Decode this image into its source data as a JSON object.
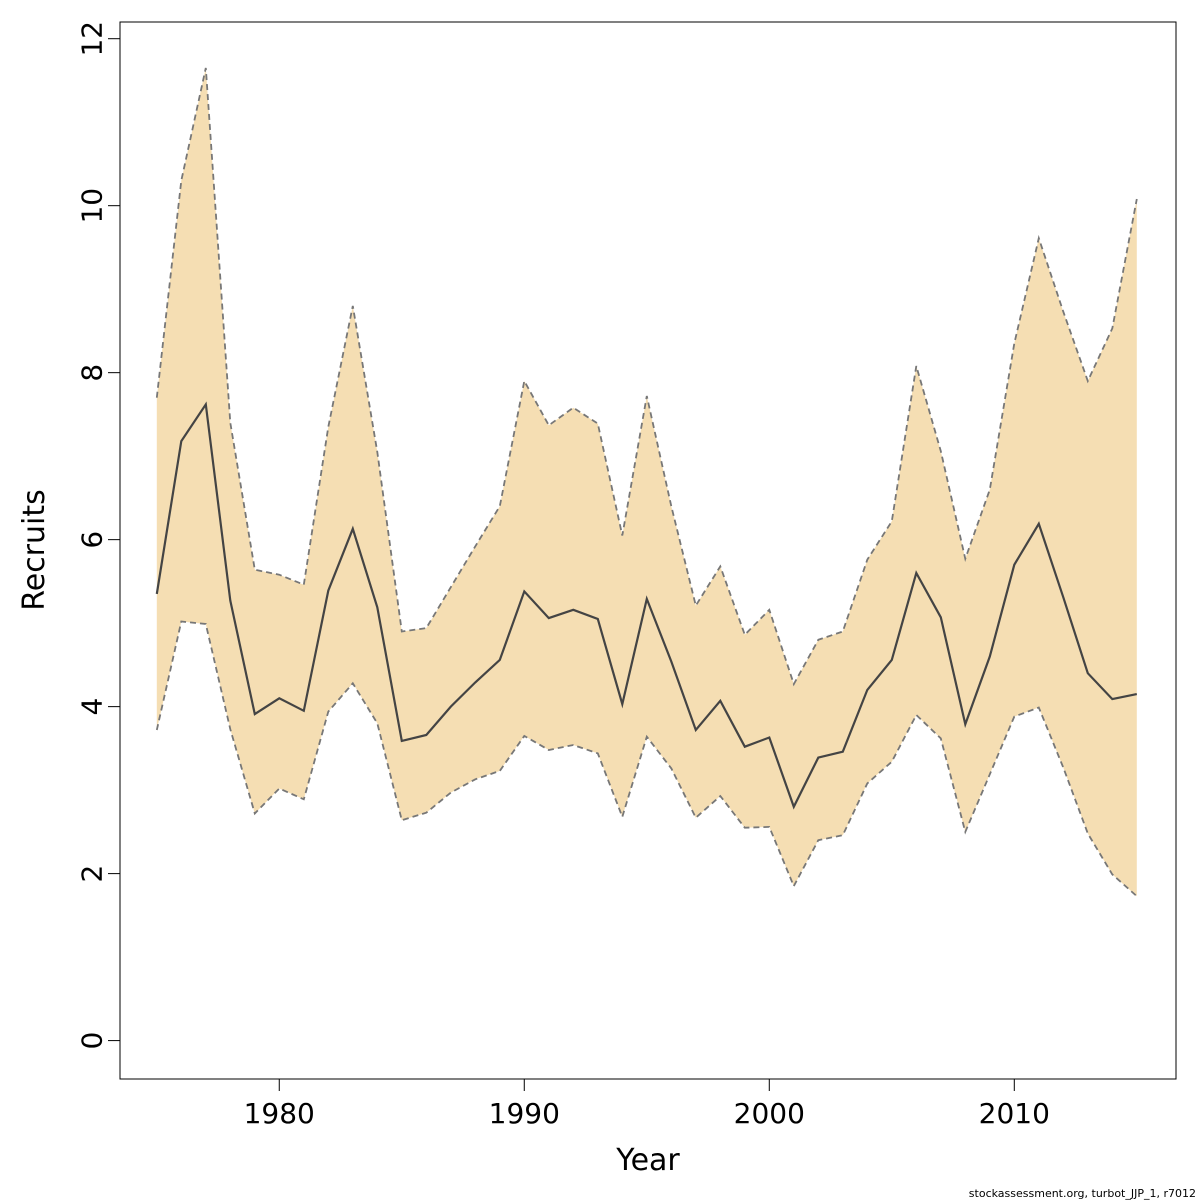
{
  "chart_data": {
    "type": "area",
    "xlabel": "Year",
    "ylabel": "Recruits",
    "xlim": [
      1973.5,
      2016.6
    ],
    "ylim": [
      -0.46,
      12.2
    ],
    "x_ticks": [
      1980,
      1990,
      2000,
      2010
    ],
    "x_tick_labels": [
      "1980",
      "1990",
      "2000",
      "2010"
    ],
    "y_ticks": [
      0,
      2,
      4,
      6,
      8,
      10,
      12
    ],
    "y_tick_labels": [
      "0",
      "2",
      "4",
      "6",
      "8",
      "10",
      "12"
    ],
    "grid": false,
    "legend": "none",
    "x": [
      1975,
      1976,
      1977,
      1978,
      1979,
      1980,
      1981,
      1982,
      1983,
      1984,
      1985,
      1986,
      1987,
      1988,
      1989,
      1990,
      1991,
      1992,
      1993,
      1994,
      1995,
      1996,
      1997,
      1998,
      1999,
      2000,
      2001,
      2002,
      2003,
      2004,
      2005,
      2006,
      2007,
      2008,
      2009,
      2010,
      2011,
      2012,
      2013,
      2014,
      2015
    ],
    "series": [
      {
        "role": "estimate",
        "values": [
          5.35,
          7.18,
          7.62,
          5.27,
          3.91,
          4.1,
          3.95,
          5.39,
          6.13,
          5.19,
          3.59,
          3.66,
          4.0,
          4.29,
          4.56,
          5.38,
          5.06,
          5.16,
          5.05,
          4.03,
          5.29,
          4.54,
          3.72,
          4.07,
          3.52,
          3.63,
          2.8,
          3.39,
          3.46,
          4.2,
          4.56,
          5.6,
          5.07,
          3.79,
          4.6,
          5.7,
          6.19,
          5.31,
          4.4,
          4.09,
          4.15
        ]
      },
      {
        "role": "upper",
        "values": [
          7.7,
          10.3,
          11.65,
          7.4,
          5.64,
          5.58,
          5.46,
          7.35,
          8.8,
          7.05,
          4.9,
          4.94,
          5.43,
          5.92,
          6.4,
          7.9,
          7.37,
          7.58,
          7.39,
          6.05,
          7.72,
          6.4,
          5.21,
          5.68,
          4.86,
          5.16,
          4.27,
          4.8,
          4.9,
          5.76,
          6.22,
          8.08,
          7.06,
          5.77,
          6.6,
          8.35,
          9.61,
          8.73,
          7.9,
          8.53,
          10.08
        ]
      },
      {
        "role": "lower",
        "values": [
          3.72,
          5.02,
          4.99,
          3.73,
          2.72,
          3.02,
          2.89,
          3.94,
          4.28,
          3.8,
          2.64,
          2.73,
          2.97,
          3.13,
          3.23,
          3.65,
          3.48,
          3.54,
          3.44,
          2.68,
          3.64,
          3.26,
          2.67,
          2.93,
          2.55,
          2.56,
          1.85,
          2.4,
          2.46,
          3.08,
          3.34,
          3.9,
          3.62,
          2.5,
          3.19,
          3.88,
          3.99,
          3.27,
          2.48,
          1.99,
          1.73
        ]
      }
    ]
  },
  "colors": {
    "band_fill": "#f5deb3",
    "estimate_line": "#444444",
    "bound_line": "#777777",
    "axis": "#000000"
  },
  "credit": "stockassessment.org, turbot_JJP_1, r7012"
}
